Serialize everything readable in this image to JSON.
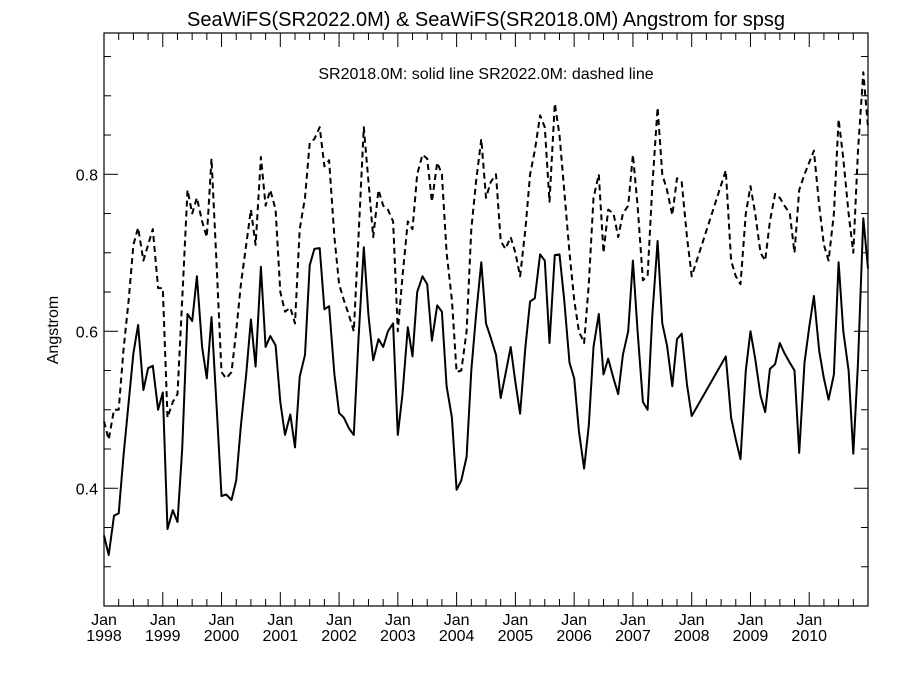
{
  "chart_data": {
    "type": "line",
    "title": "SeaWiFS(SR2022.0M) & SeaWiFS(SR2018.0M)  Angstrom for spsg",
    "annotation": "SR2018.0M: solid line   SR2022.0M: dashed line",
    "ylabel": "Angstrom",
    "xlabel": "",
    "xlim": [
      1998.0,
      2011.0
    ],
    "ylim": [
      0.25,
      0.98
    ],
    "yticks": [
      0.4,
      0.6,
      0.8
    ],
    "ytick_labels": [
      "0.4",
      "0.6",
      "0.8"
    ],
    "xticks": [
      {
        "x": 1998,
        "month": "Jan",
        "year": "1998"
      },
      {
        "x": 1999,
        "month": "Jan",
        "year": "1999"
      },
      {
        "x": 2000,
        "month": "Jan",
        "year": "2000"
      },
      {
        "x": 2001,
        "month": "Jan",
        "year": "2001"
      },
      {
        "x": 2002,
        "month": "Jan",
        "year": "2002"
      },
      {
        "x": 2003,
        "month": "Jan",
        "year": "2003"
      },
      {
        "x": 2004,
        "month": "Jan",
        "year": "2004"
      },
      {
        "x": 2005,
        "month": "Jan",
        "year": "2005"
      },
      {
        "x": 2006,
        "month": "Jan",
        "year": "2006"
      },
      {
        "x": 2007,
        "month": "Jan",
        "year": "2007"
      },
      {
        "x": 2008,
        "month": "Jan",
        "year": "2008"
      },
      {
        "x": 2009,
        "month": "Jan",
        "year": "2009"
      },
      {
        "x": 2010,
        "month": "Jan",
        "year": "2010"
      }
    ],
    "grid": false,
    "series": [
      {
        "name": "SR2018.0M",
        "style": "solid",
        "color": "#000000",
        "x": [
          1998.0,
          1998.08,
          1998.17,
          1998.25,
          1998.33,
          1998.42,
          1998.5,
          1998.58,
          1998.67,
          1998.75,
          1998.83,
          1998.92,
          1999.0,
          1999.08,
          1999.17,
          1999.25,
          1999.33,
          1999.42,
          1999.5,
          1999.58,
          1999.67,
          1999.75,
          1999.83,
          1999.92,
          2000.0,
          2000.08,
          2000.17,
          2000.25,
          2000.33,
          2000.42,
          2000.5,
          2000.58,
          2000.67,
          2000.75,
          2000.83,
          2000.92,
          2001.0,
          2001.08,
          2001.17,
          2001.25,
          2001.33,
          2001.42,
          2001.5,
          2001.58,
          2001.67,
          2001.75,
          2001.83,
          2001.92,
          2002.0,
          2002.08,
          2002.17,
          2002.25,
          2002.33,
          2002.42,
          2002.5,
          2002.58,
          2002.67,
          2002.75,
          2002.83,
          2002.92,
          2003.0,
          2003.08,
          2003.17,
          2003.25,
          2003.33,
          2003.42,
          2003.5,
          2003.58,
          2003.67,
          2003.75,
          2003.83,
          2003.92,
          2004.0,
          2004.08,
          2004.17,
          2004.25,
          2004.33,
          2004.42,
          2004.5,
          2004.58,
          2004.67,
          2004.75,
          2004.83,
          2004.92,
          2005.0,
          2005.08,
          2005.17,
          2005.25,
          2005.33,
          2005.42,
          2005.5,
          2005.58,
          2005.67,
          2005.75,
          2005.83,
          2005.92,
          2006.0,
          2006.08,
          2006.17,
          2006.25,
          2006.33,
          2006.42,
          2006.5,
          2006.58,
          2006.67,
          2006.75,
          2006.83,
          2006.92,
          2007.0,
          2007.08,
          2007.17,
          2007.25,
          2007.33,
          2007.42,
          2007.5,
          2007.58,
          2007.67,
          2007.75,
          2007.83,
          2007.92,
          2008.0,
          2008.58,
          2008.67,
          2008.75,
          2008.83,
          2008.92,
          2009.0,
          2009.08,
          2009.17,
          2009.25,
          2009.33,
          2009.42,
          2009.5,
          2009.58,
          2009.67,
          2009.75,
          2009.83,
          2009.92,
          2010.0,
          2010.08,
          2010.17,
          2010.25,
          2010.33,
          2010.42,
          2010.5,
          2010.58,
          2010.67,
          2010.75,
          2010.83,
          2010.92,
          2011.0
        ],
        "y": [
          0.34,
          0.315,
          0.365,
          0.368,
          0.44,
          0.51,
          0.572,
          0.608,
          0.525,
          0.553,
          0.556,
          0.5,
          0.522,
          0.348,
          0.372,
          0.357,
          0.45,
          0.622,
          0.613,
          0.67,
          0.58,
          0.54,
          0.618,
          0.5,
          0.39,
          0.392,
          0.385,
          0.41,
          0.48,
          0.545,
          0.615,
          0.555,
          0.682,
          0.58,
          0.594,
          0.582,
          0.51,
          0.468,
          0.494,
          0.452,
          0.542,
          0.57,
          0.684,
          0.705,
          0.706,
          0.628,
          0.632,
          0.545,
          0.496,
          0.49,
          0.476,
          0.468,
          0.59,
          0.707,
          0.62,
          0.563,
          0.59,
          0.58,
          0.6,
          0.61,
          0.468,
          0.52,
          0.605,
          0.568,
          0.65,
          0.67,
          0.66,
          0.588,
          0.633,
          0.625,
          0.53,
          0.49,
          0.398,
          0.41,
          0.44,
          0.55,
          0.62,
          0.688,
          0.61,
          0.592,
          0.57,
          0.515,
          0.545,
          0.58,
          0.535,
          0.495,
          0.58,
          0.638,
          0.642,
          0.698,
          0.69,
          0.585,
          0.697,
          0.698,
          0.64,
          0.56,
          0.54,
          0.473,
          0.425,
          0.48,
          0.58,
          0.622,
          0.545,
          0.565,
          0.54,
          0.52,
          0.57,
          0.6,
          0.69,
          0.6,
          0.51,
          0.5,
          0.62,
          0.715,
          0.61,
          0.582,
          0.53,
          0.59,
          0.597,
          0.532,
          0.492,
          0.568,
          0.49,
          0.462,
          0.437,
          0.55,
          0.6,
          0.565,
          0.518,
          0.497,
          0.552,
          0.558,
          0.585,
          0.572,
          0.56,
          0.55,
          0.445,
          0.56,
          0.605,
          0.645,
          0.575,
          0.54,
          0.513,
          0.545,
          0.688,
          0.6,
          0.55,
          0.444,
          0.56,
          0.744,
          0.68
        ]
      },
      {
        "name": "SR2022.0M",
        "style": "dashed",
        "color": "#000000",
        "x": [
          1998.0,
          1998.08,
          1998.17,
          1998.25,
          1998.33,
          1998.42,
          1998.5,
          1998.58,
          1998.67,
          1998.75,
          1998.83,
          1998.92,
          1999.0,
          1999.08,
          1999.17,
          1999.25,
          1999.33,
          1999.42,
          1999.5,
          1999.58,
          1999.67,
          1999.75,
          1999.83,
          1999.92,
          2000.0,
          2000.08,
          2000.17,
          2000.25,
          2000.33,
          2000.42,
          2000.5,
          2000.58,
          2000.67,
          2000.75,
          2000.83,
          2000.92,
          2001.0,
          2001.08,
          2001.17,
          2001.25,
          2001.33,
          2001.42,
          2001.5,
          2001.58,
          2001.67,
          2001.75,
          2001.83,
          2001.92,
          2002.0,
          2002.08,
          2002.17,
          2002.25,
          2002.33,
          2002.42,
          2002.5,
          2002.58,
          2002.67,
          2002.75,
          2002.83,
          2002.92,
          2003.0,
          2003.08,
          2003.17,
          2003.25,
          2003.33,
          2003.42,
          2003.5,
          2003.58,
          2003.67,
          2003.75,
          2003.83,
          2003.92,
          2004.0,
          2004.08,
          2004.17,
          2004.25,
          2004.33,
          2004.42,
          2004.5,
          2004.58,
          2004.67,
          2004.75,
          2004.83,
          2004.92,
          2005.0,
          2005.08,
          2005.17,
          2005.25,
          2005.33,
          2005.42,
          2005.5,
          2005.58,
          2005.67,
          2005.75,
          2005.83,
          2005.92,
          2006.0,
          2006.08,
          2006.17,
          2006.25,
          2006.33,
          2006.42,
          2006.5,
          2006.58,
          2006.67,
          2006.75,
          2006.83,
          2006.92,
          2007.0,
          2007.08,
          2007.17,
          2007.25,
          2007.33,
          2007.42,
          2007.5,
          2007.58,
          2007.67,
          2007.75,
          2007.83,
          2007.92,
          2008.0,
          2008.58,
          2008.67,
          2008.75,
          2008.83,
          2008.92,
          2009.0,
          2009.08,
          2009.17,
          2009.25,
          2009.33,
          2009.42,
          2009.5,
          2009.58,
          2009.67,
          2009.75,
          2009.83,
          2009.92,
          2010.0,
          2010.08,
          2010.17,
          2010.25,
          2010.33,
          2010.42,
          2010.5,
          2010.58,
          2010.67,
          2010.75,
          2010.83,
          2010.92,
          2011.0
        ],
        "y": [
          0.485,
          0.462,
          0.5,
          0.5,
          0.575,
          0.64,
          0.71,
          0.732,
          0.69,
          0.71,
          0.73,
          0.655,
          0.655,
          0.49,
          0.51,
          0.52,
          0.64,
          0.78,
          0.75,
          0.77,
          0.74,
          0.72,
          0.82,
          0.68,
          0.548,
          0.54,
          0.548,
          0.6,
          0.66,
          0.71,
          0.755,
          0.71,
          0.822,
          0.76,
          0.78,
          0.755,
          0.65,
          0.625,
          0.63,
          0.61,
          0.73,
          0.77,
          0.84,
          0.845,
          0.86,
          0.81,
          0.818,
          0.72,
          0.66,
          0.64,
          0.62,
          0.6,
          0.72,
          0.86,
          0.79,
          0.72,
          0.78,
          0.76,
          0.755,
          0.74,
          0.6,
          0.67,
          0.74,
          0.73,
          0.8,
          0.825,
          0.82,
          0.765,
          0.815,
          0.8,
          0.7,
          0.64,
          0.548,
          0.55,
          0.6,
          0.73,
          0.79,
          0.845,
          0.77,
          0.79,
          0.8,
          0.715,
          0.705,
          0.72,
          0.7,
          0.67,
          0.73,
          0.8,
          0.83,
          0.875,
          0.86,
          0.765,
          0.89,
          0.85,
          0.78,
          0.7,
          0.64,
          0.6,
          0.585,
          0.66,
          0.77,
          0.8,
          0.7,
          0.755,
          0.75,
          0.72,
          0.75,
          0.76,
          0.825,
          0.76,
          0.665,
          0.67,
          0.785,
          0.885,
          0.8,
          0.78,
          0.748,
          0.795,
          0.79,
          0.72,
          0.67,
          0.805,
          0.69,
          0.67,
          0.66,
          0.75,
          0.785,
          0.75,
          0.7,
          0.69,
          0.74,
          0.775,
          0.77,
          0.76,
          0.75,
          0.7,
          0.78,
          0.8,
          0.815,
          0.83,
          0.76,
          0.71,
          0.69,
          0.75,
          0.87,
          0.82,
          0.75,
          0.7,
          0.83,
          0.93,
          0.86
        ]
      }
    ]
  }
}
